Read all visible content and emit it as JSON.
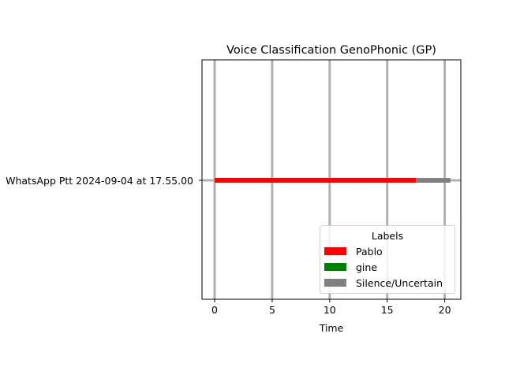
{
  "chart_data": {
    "type": "bar",
    "title": "Voice Classification GenoPhonic (GP)",
    "xlabel": "Time",
    "ylabel": "",
    "categories": [
      "WhatsApp Ptt 2024-09-04 at 17.55.00"
    ],
    "xlim": [
      -1.1,
      21.4
    ],
    "xticks": [
      0,
      5,
      10,
      15,
      20
    ],
    "grid": true,
    "legend_placement": "lower-right",
    "legend_title": "Labels",
    "legend": [
      {
        "name": "Pablo",
        "color": "#ff0000"
      },
      {
        "name": "gine",
        "color": "#008000"
      },
      {
        "name": "Silence/Uncertain",
        "color": "#808080"
      }
    ],
    "segments": [
      {
        "category": "WhatsApp Ptt 2024-09-04 at 17.55.00",
        "label": "Pablo",
        "start": 0,
        "end": 17.5,
        "color": "#ff0000"
      },
      {
        "category": "WhatsApp Ptt 2024-09-04 at 17.55.00",
        "label": "Silence/Uncertain",
        "start": 17.5,
        "end": 20.5,
        "color": "#808080"
      }
    ]
  }
}
